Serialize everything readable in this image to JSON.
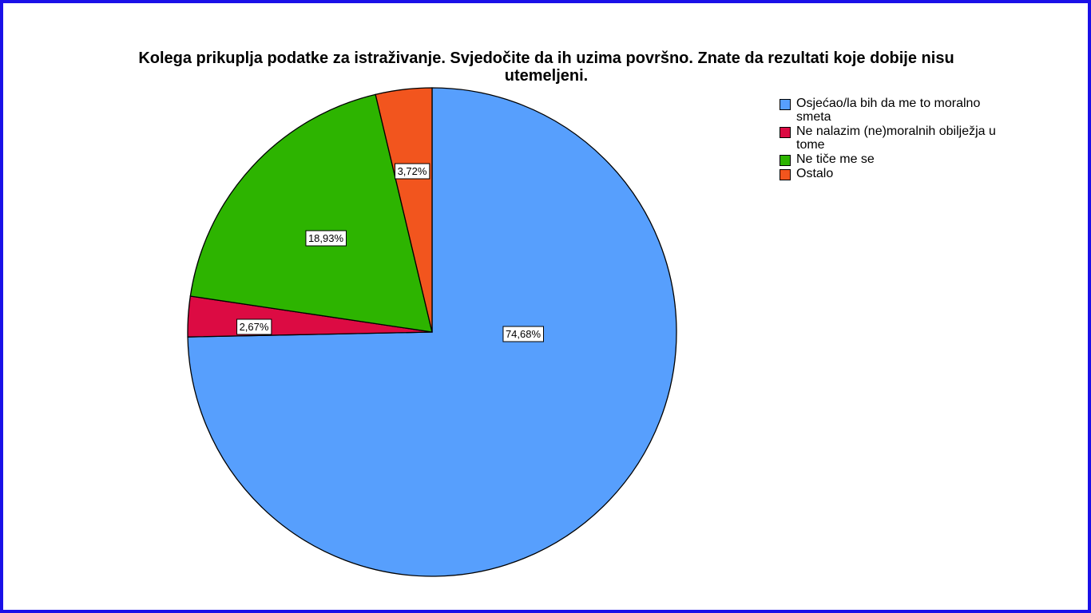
{
  "chart_data": {
    "type": "pie",
    "title": "Kolega prikuplja podatke za istraživanje. Svjedočite da ih uzima površno. Znate da rezultati koje dobije nisu utemeljeni.",
    "legend_position": "right",
    "slices": [
      {
        "label": "Osjećao/la bih da me to moralno smeta",
        "value": 74.68,
        "value_label": "74,68%",
        "color": "#579ffd"
      },
      {
        "label": "Ne nalazim (ne)moralnih obilježja u tome",
        "value": 2.67,
        "value_label": "2,67%",
        "color": "#dc0b43"
      },
      {
        "label": "Ne tiče me se",
        "value": 18.93,
        "value_label": "18,93%",
        "color": "#2db400"
      },
      {
        "label": "Ostalo",
        "value": 3.72,
        "value_label": "3,72%",
        "color": "#f2551e"
      }
    ]
  }
}
